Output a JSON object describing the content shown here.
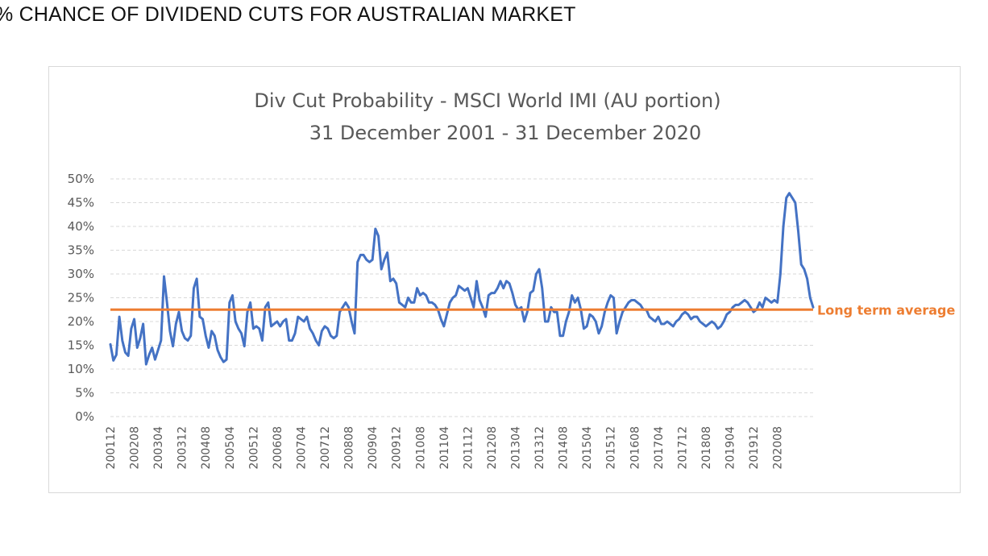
{
  "page": {
    "heading": "E % CHANCE OF DIVIDEND CUTS FOR AUSTRALIAN MARKET"
  },
  "chart_data": {
    "type": "line",
    "title_line1": "Div Cut Probability - MSCI World IMI (AU portion)",
    "title_line2": "31 December 2001 - 31 December 2020",
    "xlabel": "",
    "ylabel": "",
    "ylim": [
      0,
      0.5
    ],
    "y_ticks": [
      "0%",
      "5%",
      "10%",
      "15%",
      "20%",
      "25%",
      "30%",
      "35%",
      "40%",
      "45%",
      "50%"
    ],
    "x_ticks": [
      "200112",
      "200208",
      "200304",
      "200312",
      "200408",
      "200504",
      "200512",
      "200608",
      "200704",
      "200712",
      "200808",
      "200904",
      "200912",
      "201008",
      "201104",
      "201112",
      "201208",
      "201304",
      "201312",
      "201408",
      "201504",
      "201512",
      "201608",
      "201704",
      "201712",
      "201808",
      "201904",
      "201912",
      "202008"
    ],
    "grid": "horizontal dashed",
    "series": [
      {
        "name": "",
        "color": "#4472c4",
        "x_start": "200112",
        "x_step_months": 1,
        "values": [
          0.152,
          0.118,
          0.13,
          0.21,
          0.16,
          0.135,
          0.128,
          0.185,
          0.205,
          0.145,
          0.165,
          0.195,
          0.11,
          0.13,
          0.145,
          0.12,
          0.14,
          0.16,
          0.295,
          0.24,
          0.18,
          0.148,
          0.195,
          0.22,
          0.18,
          0.165,
          0.16,
          0.17,
          0.27,
          0.29,
          0.21,
          0.205,
          0.17,
          0.145,
          0.18,
          0.17,
          0.14,
          0.125,
          0.115,
          0.12,
          0.24,
          0.255,
          0.2,
          0.185,
          0.175,
          0.148,
          0.22,
          0.24,
          0.185,
          0.19,
          0.185,
          0.16,
          0.23,
          0.24,
          0.19,
          0.195,
          0.2,
          0.19,
          0.2,
          0.205,
          0.16,
          0.16,
          0.175,
          0.21,
          0.205,
          0.2,
          0.21,
          0.185,
          0.175,
          0.16,
          0.15,
          0.18,
          0.19,
          0.185,
          0.17,
          0.165,
          0.17,
          0.22,
          0.23,
          0.24,
          0.23,
          0.2,
          0.175,
          0.325,
          0.34,
          0.34,
          0.33,
          0.325,
          0.33,
          0.395,
          0.38,
          0.31,
          0.33,
          0.345,
          0.285,
          0.29,
          0.28,
          0.24,
          0.235,
          0.23,
          0.25,
          0.24,
          0.24,
          0.27,
          0.255,
          0.26,
          0.255,
          0.24,
          0.24,
          0.235,
          0.225,
          0.205,
          0.19,
          0.215,
          0.24,
          0.25,
          0.255,
          0.275,
          0.27,
          0.265,
          0.27,
          0.25,
          0.23,
          0.285,
          0.245,
          0.23,
          0.21,
          0.255,
          0.26,
          0.26,
          0.27,
          0.285,
          0.27,
          0.285,
          0.28,
          0.26,
          0.235,
          0.225,
          0.23,
          0.2,
          0.22,
          0.26,
          0.265,
          0.3,
          0.31,
          0.27,
          0.2,
          0.2,
          0.23,
          0.22,
          0.22,
          0.17,
          0.17,
          0.2,
          0.22,
          0.255,
          0.24,
          0.25,
          0.225,
          0.185,
          0.19,
          0.215,
          0.21,
          0.2,
          0.175,
          0.19,
          0.22,
          0.24,
          0.255,
          0.25,
          0.175,
          0.2,
          0.22,
          0.23,
          0.24,
          0.245,
          0.245,
          0.24,
          0.235,
          0.225,
          0.225,
          0.21,
          0.205,
          0.2,
          0.21,
          0.195,
          0.195,
          0.2,
          0.195,
          0.19,
          0.2,
          0.205,
          0.215,
          0.22,
          0.215,
          0.205,
          0.21,
          0.21,
          0.2,
          0.195,
          0.19,
          0.195,
          0.2,
          0.195,
          0.185,
          0.19,
          0.2,
          0.215,
          0.22,
          0.23,
          0.235,
          0.235,
          0.24,
          0.245,
          0.24,
          0.23,
          0.22,
          0.225,
          0.24,
          0.23,
          0.25,
          0.245,
          0.24,
          0.245,
          0.24,
          0.3,
          0.4,
          0.46,
          0.47,
          0.46,
          0.45,
          0.39,
          0.32,
          0.31,
          0.29,
          0.25,
          0.23
        ]
      },
      {
        "name": "Long term average",
        "color": "#ed7d31",
        "value": 0.225
      }
    ],
    "annotations": [
      {
        "text": "Long term average",
        "color": "#ed7d31"
      }
    ]
  }
}
